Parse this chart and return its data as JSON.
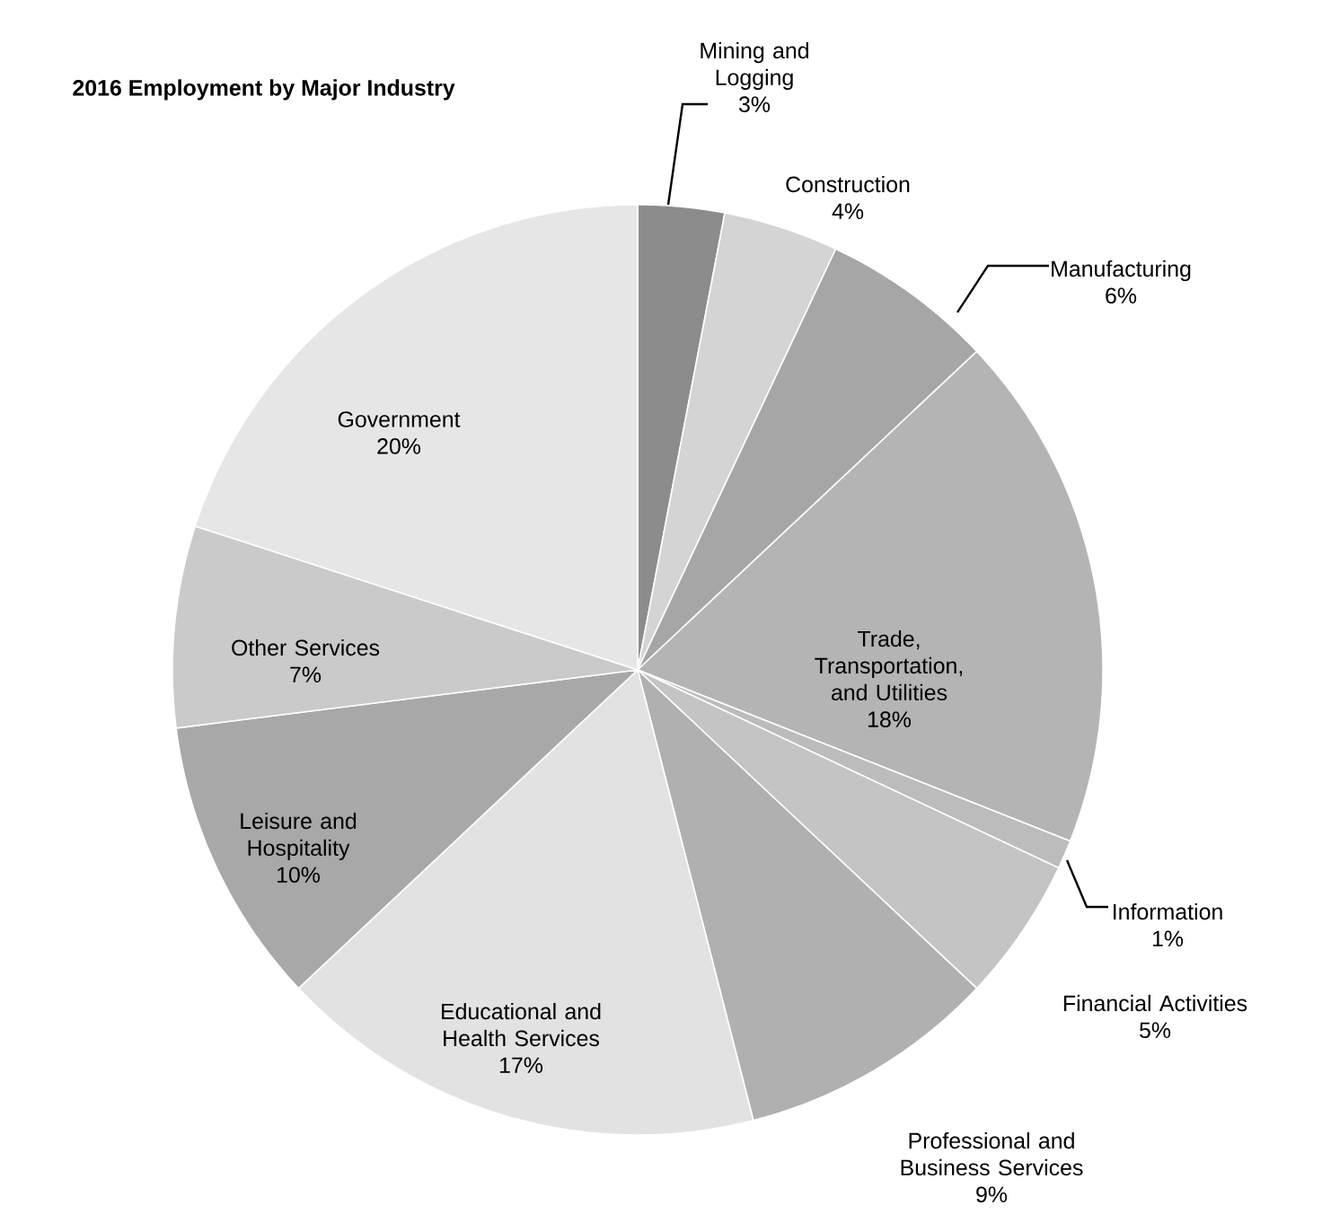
{
  "chart_data": {
    "type": "pie",
    "title": "2016 Employment by Major Industry",
    "categories": [
      "Mining and Logging",
      "Construction",
      "Manufacturing",
      "Trade, Transportation, and Utilities",
      "Information",
      "Financial Activities",
      "Professional and Business Services",
      "Educational and Health Services",
      "Leisure and Hospitality",
      "Other  Services",
      "Government"
    ],
    "values": [
      3,
      4,
      6,
      18,
      1,
      5,
      9,
      17,
      10,
      7,
      20
    ],
    "value_labels": [
      "3%",
      "4%",
      "6%",
      "18%",
      "1%",
      "5%",
      "9%",
      "17%",
      "10%",
      "7%",
      "20%"
    ],
    "colors": [
      "#8c8c8c",
      "#d4d4d4",
      "#a6a6a6",
      "#b4b4b4",
      "#bcbcbc",
      "#c4c4c4",
      "#b0b0b0",
      "#e2e2e2",
      "#a8a8a8",
      "#cacaca",
      "#e6e6e6"
    ]
  }
}
